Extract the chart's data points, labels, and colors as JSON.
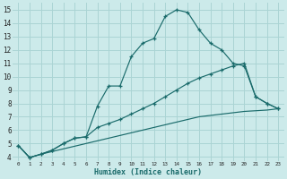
{
  "xlabel": "Humidex (Indice chaleur)",
  "bg_color": "#cceaea",
  "grid_color": "#aad4d4",
  "line_color": "#1a6b6b",
  "xlim": [
    -0.5,
    23.5
  ],
  "ylim": [
    3.7,
    15.5
  ],
  "xticks": [
    0,
    1,
    2,
    3,
    4,
    5,
    6,
    7,
    8,
    9,
    10,
    11,
    12,
    13,
    14,
    15,
    16,
    17,
    18,
    19,
    20,
    21,
    22,
    23
  ],
  "yticks": [
    4,
    5,
    6,
    7,
    8,
    9,
    10,
    11,
    12,
    13,
    14,
    15
  ],
  "line1_x": [
    0,
    1,
    2,
    3,
    4,
    5,
    6,
    7,
    8,
    9,
    10,
    11,
    12,
    13,
    14,
    15,
    16,
    17,
    18,
    19,
    20,
    21,
    22,
    23
  ],
  "line1_y": [
    4.85,
    3.95,
    4.2,
    4.5,
    5.0,
    5.4,
    5.5,
    7.8,
    9.3,
    9.3,
    11.5,
    12.5,
    12.85,
    14.5,
    15.0,
    14.8,
    13.5,
    12.5,
    12.0,
    11.0,
    10.8,
    8.5,
    8.0,
    7.6
  ],
  "line2_x": [
    0,
    1,
    2,
    3,
    4,
    5,
    6,
    7,
    8,
    9,
    10,
    11,
    12,
    13,
    14,
    15,
    16,
    17,
    18,
    19,
    20,
    21,
    22,
    23
  ],
  "line2_y": [
    4.85,
    3.95,
    4.2,
    4.5,
    5.0,
    5.4,
    5.5,
    6.2,
    6.5,
    6.8,
    7.2,
    7.6,
    8.0,
    8.5,
    9.0,
    9.5,
    9.9,
    10.2,
    10.5,
    10.8,
    11.0,
    8.5,
    8.0,
    7.6
  ],
  "line3_x": [
    0,
    1,
    2,
    3,
    4,
    5,
    6,
    7,
    8,
    9,
    10,
    11,
    12,
    13,
    14,
    15,
    16,
    17,
    18,
    19,
    20,
    21,
    22,
    23
  ],
  "line3_y": [
    4.85,
    3.95,
    4.2,
    4.4,
    4.6,
    4.8,
    5.0,
    5.2,
    5.4,
    5.6,
    5.8,
    6.0,
    6.2,
    6.4,
    6.6,
    6.8,
    7.0,
    7.1,
    7.2,
    7.3,
    7.4,
    7.45,
    7.5,
    7.6
  ]
}
